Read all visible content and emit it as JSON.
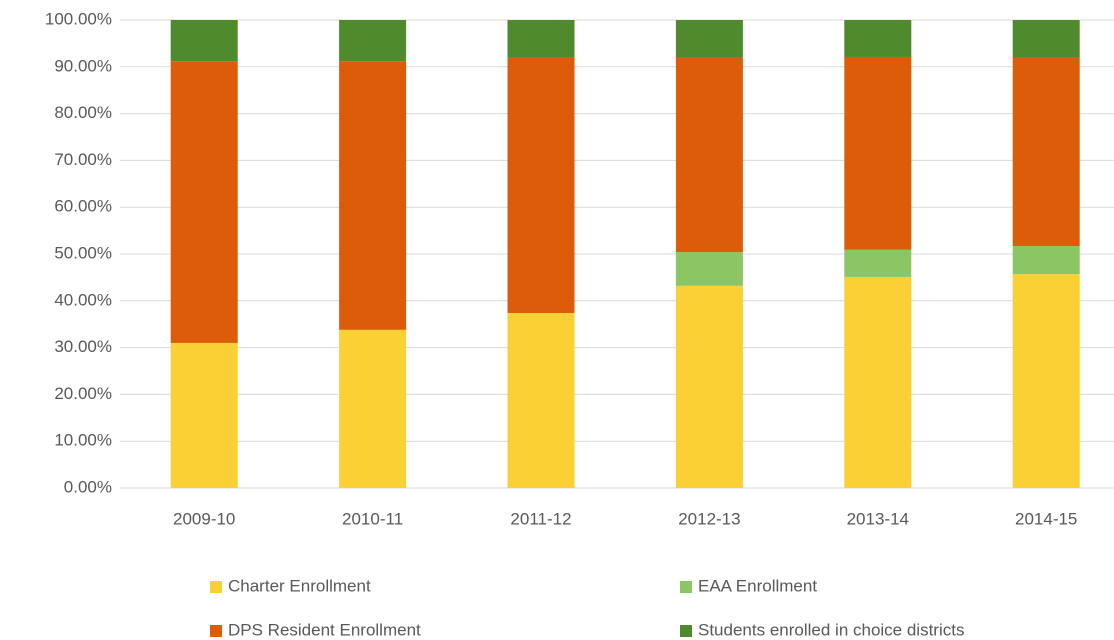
{
  "chart_data": {
    "type": "stacked_bar",
    "categories": [
      "2009-10",
      "2010-11",
      "2011-12",
      "2012-13",
      "2013-14",
      "2014-15"
    ],
    "series": [
      {
        "name": "Charter Enrollment",
        "color": "#fbd034",
        "values": [
          31.0,
          33.8,
          37.4,
          43.2,
          45.1,
          45.7
        ]
      },
      {
        "name": "EAA Enrollment",
        "color": "#8cc563",
        "values": [
          0,
          0,
          0,
          7.2,
          5.8,
          6.0
        ]
      },
      {
        "name": "DPS Resident Enrollment",
        "color": "#dc5c0a",
        "values": [
          60.2,
          57.4,
          54.5,
          41.5,
          41.2,
          40.2
        ]
      },
      {
        "name": "Students enrolled in choice districts",
        "color": "#4f8a2d",
        "values": [
          8.8,
          8.8,
          8.1,
          8.1,
          7.9,
          8.1
        ]
      }
    ],
    "ylim": [
      0,
      100
    ],
    "yticks": [
      {
        "value": 0,
        "label": "0.00%"
      },
      {
        "value": 10,
        "label": "10.00%"
      },
      {
        "value": 20,
        "label": "20.00%"
      },
      {
        "value": 30,
        "label": "30.00%"
      },
      {
        "value": 40,
        "label": "40.00%"
      },
      {
        "value": 50,
        "label": "50.00%"
      },
      {
        "value": 60,
        "label": "60.00%"
      },
      {
        "value": 70,
        "label": "70.00%"
      },
      {
        "value": 80,
        "label": "80.00%"
      },
      {
        "value": 90,
        "label": "90.00%"
      },
      {
        "value": 100,
        "label": "100.00%"
      }
    ],
    "grid": true,
    "legend": "bottom"
  }
}
